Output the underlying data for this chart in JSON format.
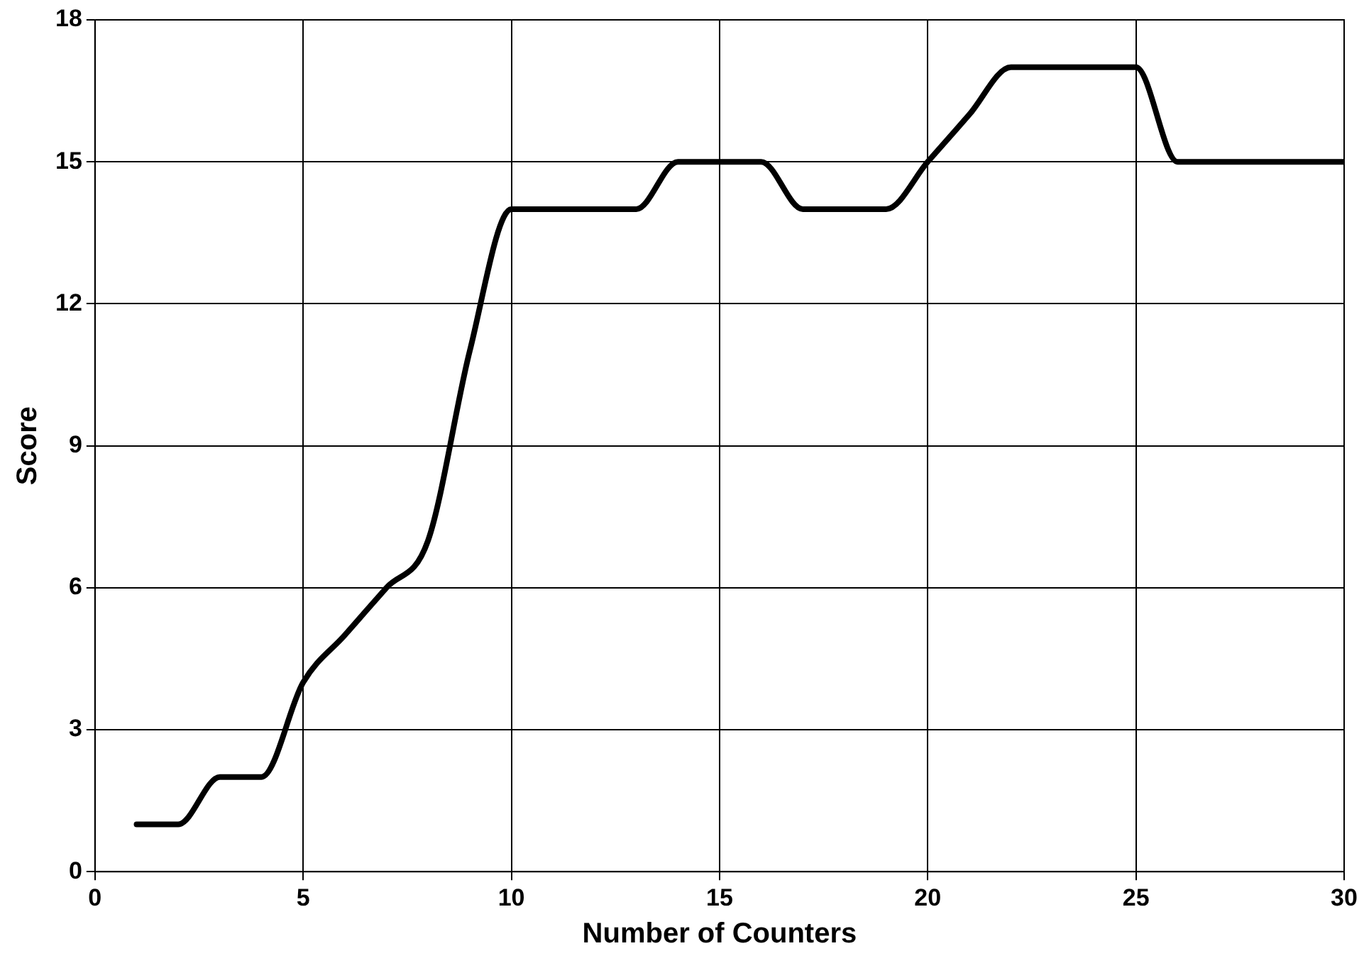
{
  "chart_data": {
    "type": "line",
    "xlabel": "Number of Counters",
    "ylabel": "Score",
    "x": [
      1,
      2,
      3,
      4,
      5,
      6,
      7,
      8,
      9,
      10,
      11,
      12,
      13,
      14,
      15,
      16,
      17,
      18,
      19,
      20,
      21,
      22,
      23,
      24,
      25,
      26,
      27,
      28,
      29,
      30
    ],
    "series": [
      {
        "color": "#000000",
        "values": [
          1,
          1,
          2,
          2,
          4,
          5,
          6,
          7,
          11,
          14,
          14,
          14,
          14,
          15,
          15,
          15,
          14,
          14,
          14,
          15,
          16,
          17,
          17,
          17,
          17,
          15,
          15,
          15,
          15,
          15
        ]
      }
    ],
    "xlim": [
      0,
      30
    ],
    "xticks": [
      0,
      5,
      10,
      15,
      20,
      25,
      30
    ],
    "ylim": [
      0,
      18
    ],
    "yticks": [
      0,
      3,
      6,
      9,
      12,
      15,
      18
    ],
    "grid": true,
    "legend": false,
    "marker": "none",
    "line_style": "solid"
  }
}
